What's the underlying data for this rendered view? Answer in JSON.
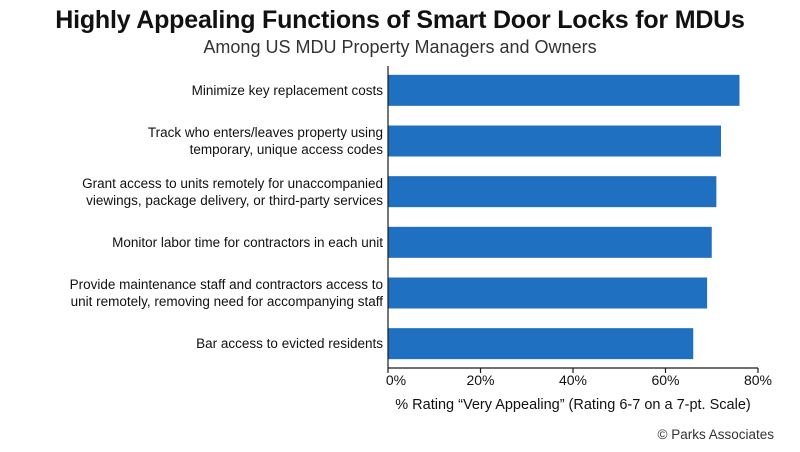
{
  "chart_data": {
    "type": "bar",
    "orientation": "horizontal",
    "title": "Highly Appealing Functions of Smart Door Locks for MDUs",
    "subtitle": "Among US MDU Property Managers and Owners",
    "categories": [
      [
        "Minimize key replacement costs"
      ],
      [
        "Track who enters/leaves property using",
        "temporary, unique access codes"
      ],
      [
        "Grant access to units remotely for unaccompanied",
        "viewings, package delivery, or third-party services"
      ],
      [
        "Monitor labor time for contractors in each unit"
      ],
      [
        "Provide maintenance staff and contractors access to",
        "unit remotely, removing need for accompanying staff"
      ],
      [
        "Bar access to evicted residents"
      ]
    ],
    "values": [
      76,
      72,
      71,
      70,
      69,
      66
    ],
    "xlim": [
      0,
      80
    ],
    "xticks": [
      "0%",
      "20%",
      "40%",
      "60%",
      "80%"
    ],
    "xlabel": "% Rating “Very Appealing” (Rating 6-7 on a 7-pt. Scale)",
    "bar_color": "#1f70c1",
    "axis_color": "#1a1a1a",
    "grid": false,
    "credit": "© Parks Associates"
  }
}
